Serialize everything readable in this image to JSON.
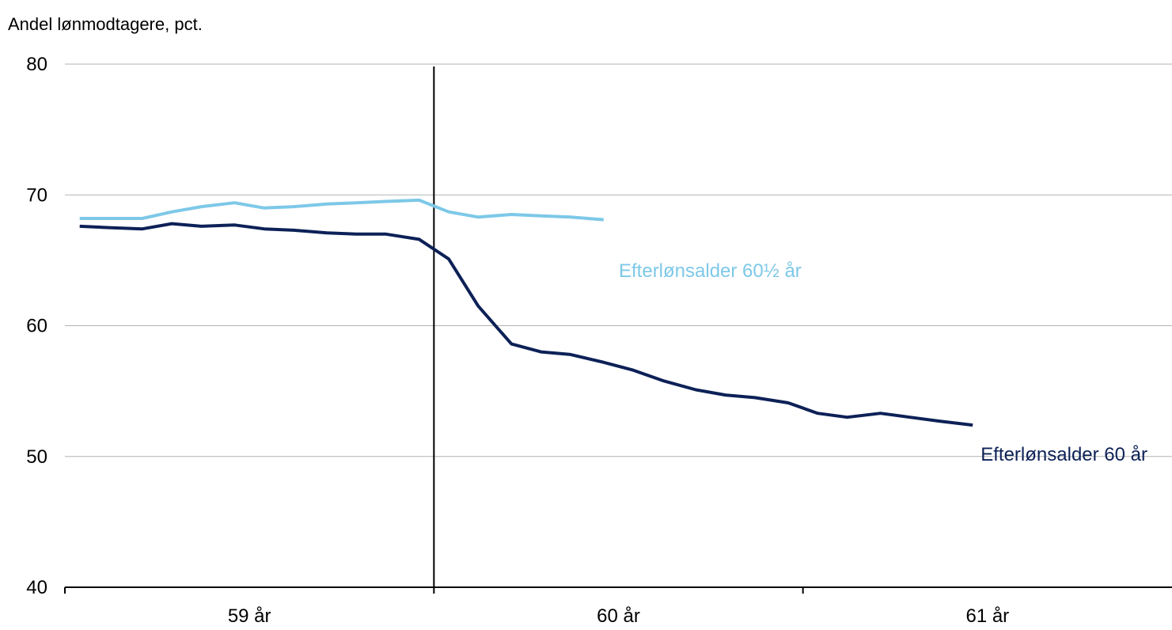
{
  "chart_data": {
    "type": "line",
    "ylabel": "Andel lønmodtagere, pct.",
    "ylim": [
      40,
      80
    ],
    "yticks": [
      "40",
      "50",
      "60",
      "70",
      "80"
    ],
    "x_tick_labels": [
      "59 år",
      "60 år",
      "61 år"
    ],
    "xlim": [
      58.5,
      61.5
    ],
    "grid": true,
    "reference_line_x": 59.5,
    "series": [
      {
        "name": "Efterlønsalder 60½ år",
        "color": "#7dc8e8",
        "x": [
          58.54,
          58.62,
          58.71,
          58.79,
          58.87,
          58.96,
          59.04,
          59.12,
          59.21,
          59.29,
          59.37,
          59.46,
          59.54,
          59.62,
          59.71,
          59.79,
          59.87,
          59.96
        ],
        "values": [
          68.2,
          68.2,
          68.2,
          68.7,
          69.1,
          69.4,
          69.0,
          69.1,
          69.3,
          69.4,
          69.5,
          69.6,
          68.7,
          68.3,
          68.5,
          68.4,
          68.3,
          68.1
        ]
      },
      {
        "name": "Efterlønsalder 60 år",
        "color": "#0d2157",
        "x": [
          58.54,
          58.62,
          58.71,
          58.79,
          58.87,
          58.96,
          59.04,
          59.12,
          59.21,
          59.29,
          59.37,
          59.46,
          59.54,
          59.62,
          59.71,
          59.79,
          59.87,
          59.96,
          60.04,
          60.12,
          60.21,
          60.29,
          60.37,
          60.46,
          60.54,
          60.62,
          60.71,
          60.79,
          60.87,
          60.96
        ],
        "values": [
          67.6,
          67.5,
          67.4,
          67.8,
          67.6,
          67.7,
          67.4,
          67.3,
          67.1,
          67.0,
          67.0,
          66.6,
          65.1,
          61.5,
          58.6,
          58.0,
          57.8,
          57.2,
          56.6,
          55.8,
          55.1,
          54.7,
          54.5,
          54.1,
          53.3,
          53.0,
          53.3,
          53.0,
          52.7,
          52.4
        ]
      }
    ]
  }
}
